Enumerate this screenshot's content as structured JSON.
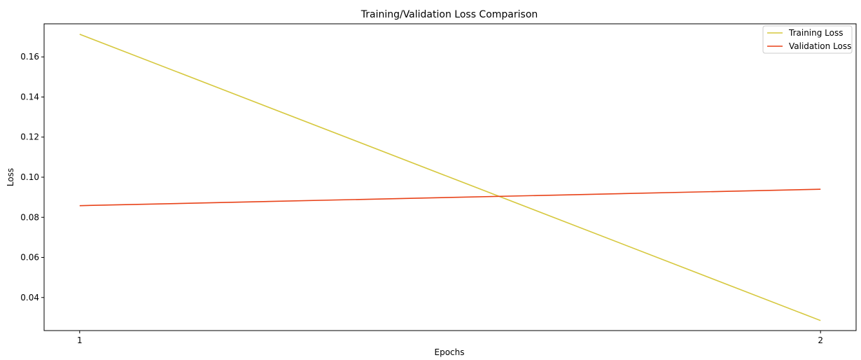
{
  "chart_data": {
    "type": "line",
    "title": "Training/Validation Loss Comparison",
    "xlabel": "Epochs",
    "ylabel": "Loss",
    "x": [
      1,
      2
    ],
    "x_ticks": [
      "1",
      "2"
    ],
    "xlim": [
      0.952,
      2.048
    ],
    "ylim": [
      0.0235,
      0.1765
    ],
    "y_ticks": [
      0.04,
      0.06,
      0.08,
      0.1,
      0.12,
      0.14,
      0.16
    ],
    "y_tick_labels": [
      "0.04",
      "0.06",
      "0.08",
      "0.10",
      "0.12",
      "0.14",
      "0.16"
    ],
    "grid": false,
    "legend_position": "top-right",
    "series": [
      {
        "name": "Training Loss",
        "values": [
          0.1713,
          0.0285
        ],
        "color": "#d6c83e"
      },
      {
        "name": "Validation Loss",
        "values": [
          0.0858,
          0.094
        ],
        "color": "#e8431a"
      }
    ]
  }
}
